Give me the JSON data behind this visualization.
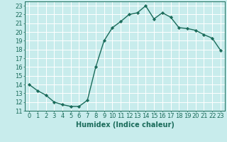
{
  "x": [
    0,
    1,
    2,
    3,
    4,
    5,
    6,
    7,
    8,
    9,
    10,
    11,
    12,
    13,
    14,
    15,
    16,
    17,
    18,
    19,
    20,
    21,
    22,
    23
  ],
  "y": [
    14,
    13.3,
    12.8,
    12.0,
    11.7,
    11.5,
    11.5,
    12.2,
    16.0,
    19.0,
    20.5,
    21.2,
    22.0,
    22.2,
    23.0,
    21.5,
    22.2,
    21.7,
    20.5,
    20.4,
    20.2,
    19.7,
    19.3,
    17.9
  ],
  "line_color": "#1a6b5a",
  "marker": "D",
  "marker_size": 2.2,
  "bg_color": "#c8ecec",
  "grid_color": "#ffffff",
  "xlabel": "Humidex (Indice chaleur)",
  "xlim": [
    -0.5,
    23.5
  ],
  "ylim": [
    11,
    23.5
  ],
  "yticks": [
    11,
    12,
    13,
    14,
    15,
    16,
    17,
    18,
    19,
    20,
    21,
    22,
    23
  ],
  "xticks": [
    0,
    1,
    2,
    3,
    4,
    5,
    6,
    7,
    8,
    9,
    10,
    11,
    12,
    13,
    14,
    15,
    16,
    17,
    18,
    19,
    20,
    21,
    22,
    23
  ],
  "xlabel_fontsize": 7.0,
  "tick_fontsize": 6.0,
  "linewidth": 1.0
}
